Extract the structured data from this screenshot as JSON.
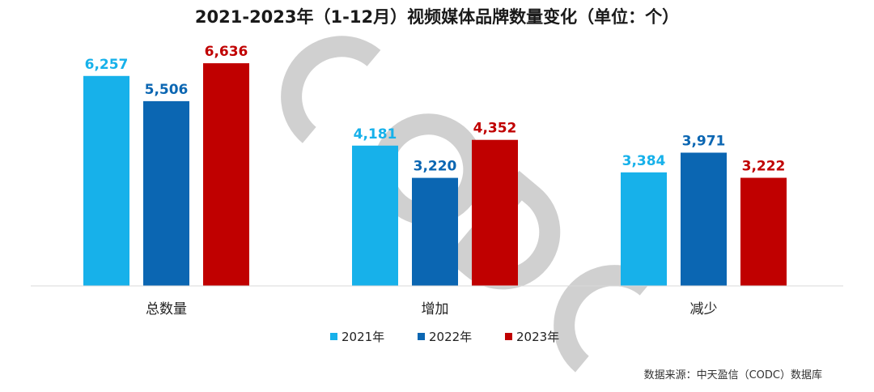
{
  "chart_data": {
    "type": "bar",
    "title": "2021-2023年（1-12月）视频媒体品牌数量变化（单位：个）",
    "categories": [
      "总数量",
      "增加",
      "减少"
    ],
    "series": [
      {
        "name": "2021年",
        "color": "#17b1ea",
        "values": [
          6257,
          4181,
          3384
        ]
      },
      {
        "name": "2022年",
        "color": "#0b66b2",
        "values": [
          5506,
          3220,
          3971
        ]
      },
      {
        "name": "2023年",
        "color": "#c00000",
        "values": [
          6636,
          4352,
          3222
        ]
      }
    ],
    "data_labels": true,
    "grid": false,
    "legend": "bottom",
    "ylim": [
      0,
      7000
    ]
  },
  "watermark": {
    "text": "CODC",
    "color": "#c8c8c8"
  },
  "source_note": "数据来源：中天盈信（CODC）数据库"
}
